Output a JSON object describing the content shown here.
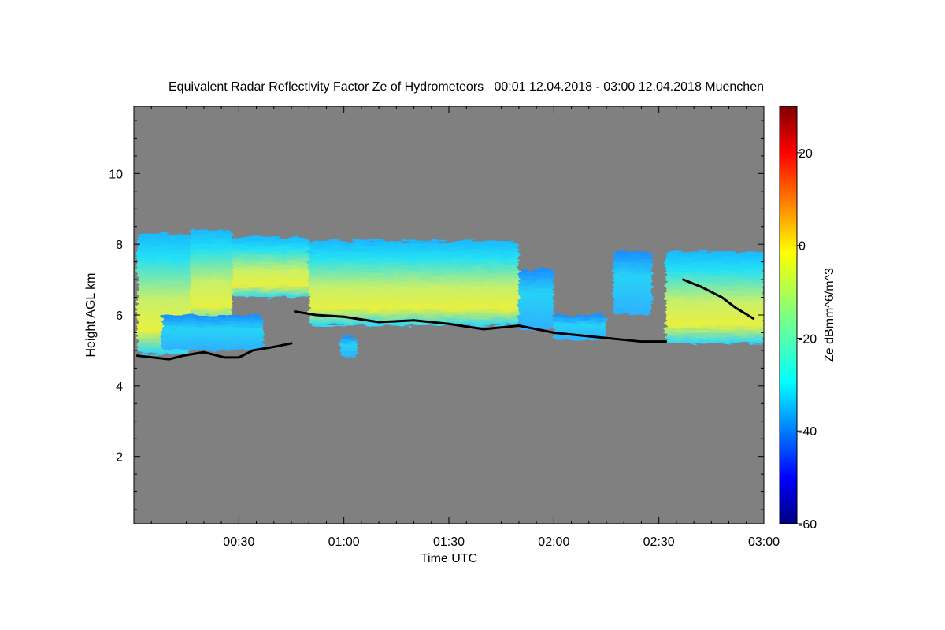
{
  "chart_data": {
    "type": "heatmap",
    "title": "Equivalent Radar Reflectivity Factor Ze of Hydrometeors   00:01 12.04.2018 - 03:00 12.04.2018 Muenchen",
    "xlabel": "Time UTC",
    "ylabel": "Height AGL km",
    "colorbar_label": "Ze dBmm^6/m^3",
    "x_range": [
      "00:01",
      "03:00"
    ],
    "x_ticks": [
      "00:30",
      "01:00",
      "01:30",
      "02:00",
      "02:30",
      "03:00"
    ],
    "ylim": [
      0.1,
      11.9
    ],
    "y_ticks": [
      "2",
      "4",
      "6",
      "8",
      "10"
    ],
    "colorbar_range": [
      -60,
      30
    ],
    "colorbar_ticks": [
      "20",
      "0",
      "-20",
      "-40",
      "-60"
    ],
    "colormap": "jet",
    "background_color": "#808080",
    "cloud_base_color": "#000000",
    "echo_regions": [
      {
        "t_start": "00:01",
        "t_end": "00:16",
        "base_km": 4.9,
        "top_km": 8.3,
        "peak_dbz": -5
      },
      {
        "t_start": "00:16",
        "t_end": "00:28",
        "base_km": 5.7,
        "top_km": 8.4,
        "peak_dbz": -5
      },
      {
        "t_start": "00:28",
        "t_end": "00:50",
        "base_km": 6.5,
        "top_km": 8.2,
        "peak_dbz": -15
      },
      {
        "t_start": "00:08",
        "t_end": "00:37",
        "base_km": 5.0,
        "top_km": 6.0,
        "peak_dbz": -20
      },
      {
        "t_start": "00:59",
        "t_end": "01:04",
        "base_km": 4.8,
        "top_km": 5.4,
        "peak_dbz": -25
      },
      {
        "t_start": "00:50",
        "t_end": "01:50",
        "base_km": 5.7,
        "top_km": 8.1,
        "peak_dbz": -8
      },
      {
        "t_start": "01:50",
        "t_end": "02:00",
        "base_km": 5.6,
        "top_km": 7.3,
        "peak_dbz": -20
      },
      {
        "t_start": "02:00",
        "t_end": "02:15",
        "base_km": 5.3,
        "top_km": 6.0,
        "peak_dbz": -25
      },
      {
        "t_start": "02:17",
        "t_end": "02:28",
        "base_km": 6.0,
        "top_km": 7.8,
        "peak_dbz": -25
      },
      {
        "t_start": "02:32",
        "t_end": "03:00",
        "base_km": 5.2,
        "top_km": 7.8,
        "peak_dbz": -15
      }
    ],
    "cloud_base_points": [
      [
        "00:01",
        4.85
      ],
      [
        "00:10",
        4.75
      ],
      [
        "00:14",
        4.85
      ],
      [
        "00:20",
        4.95
      ],
      [
        "00:26",
        4.8
      ],
      [
        "00:30",
        4.8
      ],
      [
        "00:34",
        5.0
      ],
      [
        "00:40",
        5.1
      ],
      [
        "00:45",
        5.2
      ],
      [
        "00:46",
        6.1
      ],
      [
        "00:52",
        6.0
      ],
      [
        "01:00",
        5.95
      ],
      [
        "01:10",
        5.8
      ],
      [
        "01:20",
        5.85
      ],
      [
        "01:30",
        5.75
      ],
      [
        "01:40",
        5.6
      ],
      [
        "01:50",
        5.7
      ],
      [
        "02:00",
        5.5
      ],
      [
        "02:10",
        5.4
      ],
      [
        "02:20",
        5.3
      ],
      [
        "02:25",
        5.25
      ],
      [
        "02:32",
        5.25
      ],
      [
        "02:37",
        7.0
      ],
      [
        "02:42",
        6.8
      ],
      [
        "02:48",
        6.5
      ],
      [
        "02:52",
        6.2
      ],
      [
        "02:57",
        5.9
      ]
    ]
  }
}
